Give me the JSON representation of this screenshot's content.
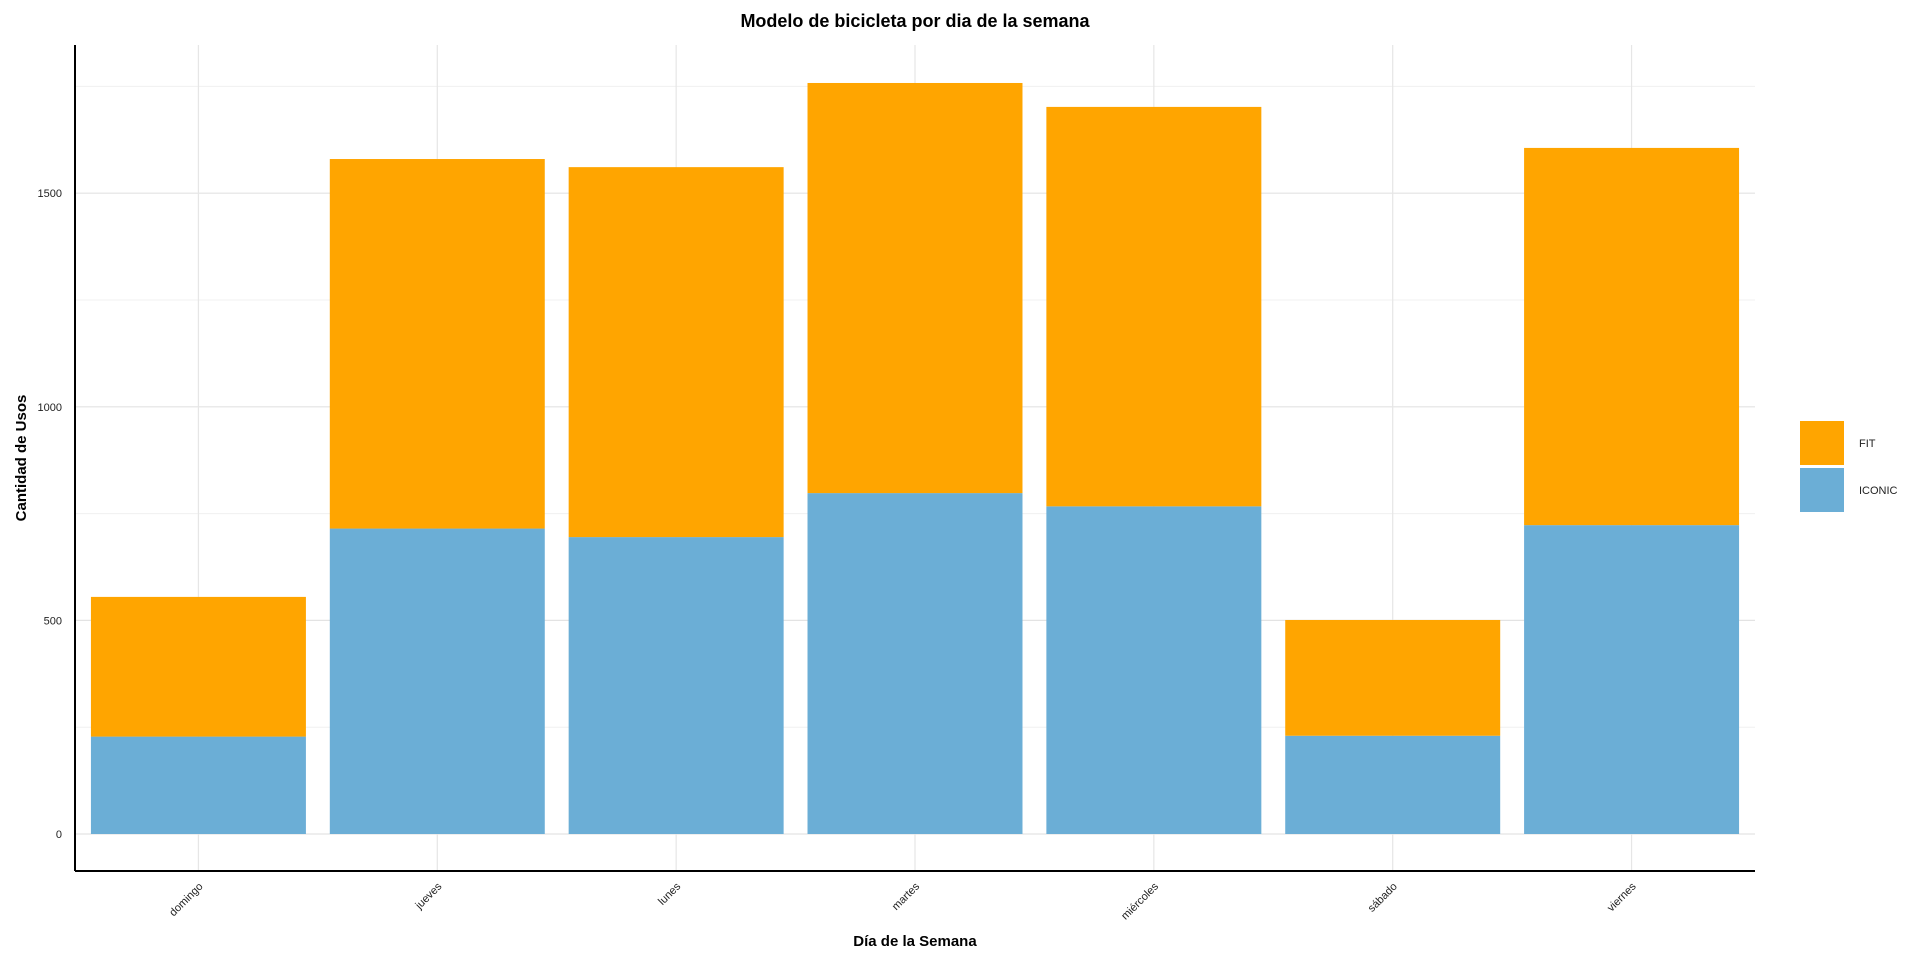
{
  "chart_data": {
    "type": "bar",
    "stacked": true,
    "title": "Modelo de bicicleta por dia de la semana",
    "xlabel": "Día de la Semana",
    "ylabel": "Cantidad de Usos",
    "categories": [
      "domingo",
      "jueves",
      "lunes",
      "martes",
      "miércoles",
      "sábado",
      "viernes"
    ],
    "series": [
      {
        "name": "ICONIC",
        "color": "#6baed6",
        "values": [
          228,
          715,
          695,
          798,
          767,
          230,
          723
        ]
      },
      {
        "name": "FIT",
        "color": "#ffa500",
        "values": [
          327,
          865,
          866,
          960,
          935,
          271,
          883
        ]
      }
    ],
    "ylim": [
      0,
      1850
    ],
    "yticks": [
      0,
      500,
      1000,
      1500
    ],
    "grid": true,
    "legend_position": "right"
  }
}
